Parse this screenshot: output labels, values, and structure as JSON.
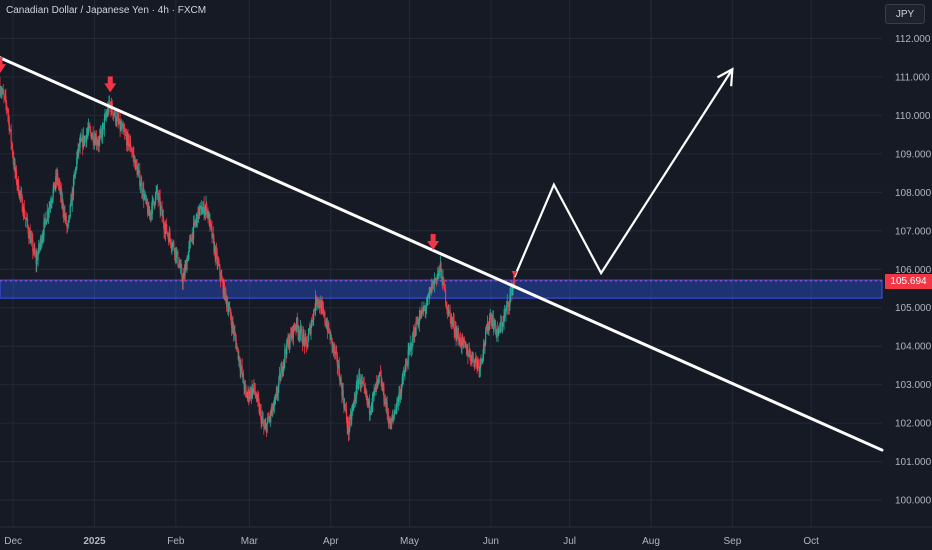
{
  "header": {
    "title": "Canadian Dollar / Japanese Yen · 4h · FXCM"
  },
  "currency_button": {
    "label": "JPY"
  },
  "last_price": {
    "label": "105.694",
    "value": 105.694,
    "color": "#f23645"
  },
  "colors": {
    "background": "#161a25",
    "grid": "#242936",
    "axis_text": "#b2b5be",
    "up_candle": "#22ab94",
    "down_candle": "#f23645",
    "zone_fill": "#2962ff",
    "zone_border": "#3f51ff",
    "annotation_line": "#ffffff",
    "arrow_marker": "#f23645"
  },
  "chart_data": {
    "type": "candlestick",
    "title": "Canadian Dollar / Japanese Yen · 4h · FXCM",
    "y_axis": {
      "ticks": [
        100.0,
        101.0,
        102.0,
        103.0,
        104.0,
        105.0,
        106.0,
        107.0,
        108.0,
        109.0,
        110.0,
        111.0,
        112.0
      ],
      "tick_labels": [
        "100.000",
        "101.000",
        "102.000",
        "103.000",
        "104.000",
        "105.000",
        "106.000",
        "107.000",
        "108.000",
        "109.000",
        "110.000",
        "111.000",
        "112.000"
      ],
      "range": [
        99.3,
        113.0
      ]
    },
    "x_axis": {
      "labels": [
        "Dec",
        "2025",
        "Feb",
        "Mar",
        "Apr",
        "May",
        "Jun",
        "Jul",
        "Aug",
        "Sep",
        "Oct"
      ],
      "dates": [
        "2024-12-01",
        "2025-01-01",
        "2025-02-01",
        "2025-03-01",
        "2025-04-01",
        "2025-05-01",
        "2025-06-01",
        "2025-07-01",
        "2025-08-01",
        "2025-09-01",
        "2025-10-01"
      ],
      "range": [
        "2024-11-26",
        "2025-10-28"
      ]
    },
    "price_path": [
      [
        "2024-11-26",
        110.8
      ],
      [
        "2024-11-29",
        110.2
      ],
      [
        "2024-12-02",
        108.5
      ],
      [
        "2024-12-06",
        107.3
      ],
      [
        "2024-12-10",
        106.2
      ],
      [
        "2024-12-14",
        107.4
      ],
      [
        "2024-12-18",
        108.4
      ],
      [
        "2024-12-22",
        107.0
      ],
      [
        "2024-12-26",
        109.1
      ],
      [
        "2024-12-30",
        109.6
      ],
      [
        "2025-01-03",
        109.3
      ],
      [
        "2025-01-07",
        110.3
      ],
      [
        "2025-01-11",
        109.7
      ],
      [
        "2025-01-15",
        109.2
      ],
      [
        "2025-01-19",
        108.2
      ],
      [
        "2025-01-22",
        107.4
      ],
      [
        "2025-01-25",
        108.0
      ],
      [
        "2025-01-28",
        107.1
      ],
      [
        "2025-02-01",
        106.5
      ],
      [
        "2025-02-04",
        105.7
      ],
      [
        "2025-02-07",
        106.8
      ],
      [
        "2025-02-10",
        107.5
      ],
      [
        "2025-02-13",
        107.6
      ],
      [
        "2025-02-16",
        106.5
      ],
      [
        "2025-02-19",
        105.6
      ],
      [
        "2025-02-22",
        104.8
      ],
      [
        "2025-02-25",
        103.8
      ],
      [
        "2025-02-28",
        102.7
      ],
      [
        "2025-03-03",
        102.9
      ],
      [
        "2025-03-07",
        101.8
      ],
      [
        "2025-03-11",
        102.5
      ],
      [
        "2025-03-15",
        103.9
      ],
      [
        "2025-03-19",
        104.6
      ],
      [
        "2025-03-23",
        104.0
      ],
      [
        "2025-03-27",
        105.3
      ],
      [
        "2025-03-31",
        104.5
      ],
      [
        "2025-04-04",
        103.5
      ],
      [
        "2025-04-08",
        101.8
      ],
      [
        "2025-04-12",
        103.2
      ],
      [
        "2025-04-16",
        102.4
      ],
      [
        "2025-04-20",
        103.2
      ],
      [
        "2025-04-24",
        101.9
      ],
      [
        "2025-04-28",
        102.9
      ],
      [
        "2025-05-01",
        103.8
      ],
      [
        "2025-05-04",
        104.6
      ],
      [
        "2025-05-08",
        105.1
      ],
      [
        "2025-05-10",
        105.6
      ],
      [
        "2025-05-13",
        106.0
      ],
      [
        "2025-05-16",
        104.9
      ],
      [
        "2025-05-20",
        104.2
      ],
      [
        "2025-05-24",
        103.8
      ],
      [
        "2025-05-28",
        103.5
      ],
      [
        "2025-06-01",
        104.8
      ],
      [
        "2025-06-04",
        104.3
      ],
      [
        "2025-06-07",
        104.9
      ],
      [
        "2025-06-10",
        105.69
      ]
    ],
    "resistance_zone": {
      "low": 105.25,
      "high": 105.72
    },
    "last_price": 105.694,
    "trendline": {
      "start": [
        "2024-11-26",
        111.5
      ],
      "end": [
        "2025-10-28",
        101.3
      ]
    },
    "projection_path": [
      [
        "2025-06-10",
        105.8
      ],
      [
        "2025-06-25",
        108.2
      ],
      [
        "2025-07-13",
        105.9
      ],
      [
        "2025-09-01",
        111.2
      ]
    ],
    "arrow_markers": [
      [
        "2024-11-26",
        111.1
      ],
      [
        "2025-01-07",
        110.6
      ],
      [
        "2025-05-10",
        106.5
      ],
      [
        "2025-06-10",
        105.8
      ]
    ]
  }
}
